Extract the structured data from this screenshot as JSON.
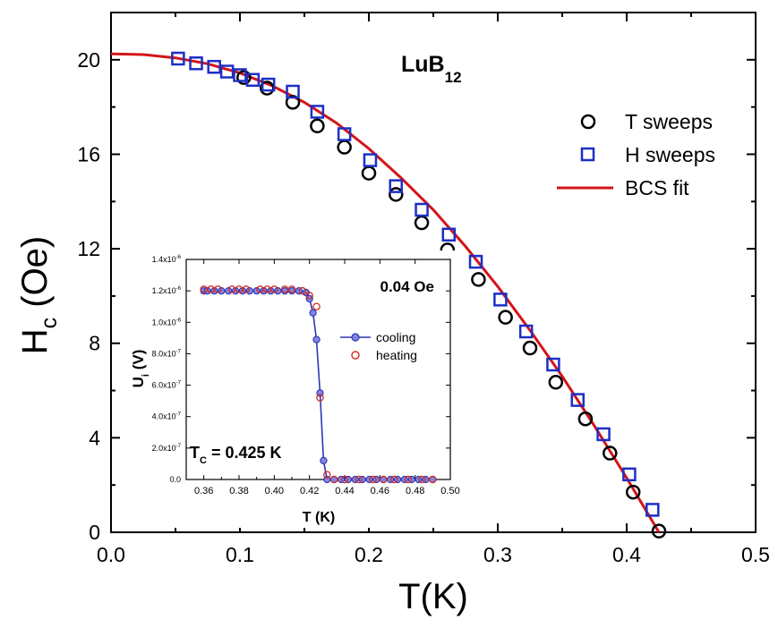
{
  "chart_data": [
    {
      "type": "scatter",
      "title": "LuB",
      "title_sub": "12",
      "xlabel": "T(K)",
      "ylabel_main": "H",
      "ylabel_sub": "c",
      "ylabel_rest": " (Oe)",
      "xlim": [
        0.0,
        0.5
      ],
      "ylim": [
        0,
        22
      ],
      "xticks": [
        "0.0",
        "0.1",
        "0.2",
        "0.3",
        "0.4",
        "0.5"
      ],
      "yticks": [
        "0",
        "4",
        "8",
        "12",
        "16",
        "20"
      ],
      "legend": {
        "placement": "right"
      },
      "series": [
        {
          "name": "T sweeps",
          "marker": "circle",
          "color": "#000000",
          "points": [
            [
              0.103,
              19.25
            ],
            [
              0.121,
              18.8
            ],
            [
              0.141,
              18.2
            ],
            [
              0.16,
              17.2
            ],
            [
              0.181,
              16.3
            ],
            [
              0.2,
              15.2
            ],
            [
              0.221,
              14.3
            ],
            [
              0.241,
              13.1
            ],
            [
              0.261,
              11.95
            ],
            [
              0.285,
              10.7
            ],
            [
              0.306,
              9.1
            ],
            [
              0.325,
              7.8
            ],
            [
              0.345,
              6.35
            ],
            [
              0.368,
              4.8
            ],
            [
              0.387,
              3.35
            ],
            [
              0.405,
              1.7
            ],
            [
              0.425,
              0.05
            ]
          ]
        },
        {
          "name": "H sweeps",
          "marker": "square",
          "color": "#1c2fc4",
          "points": [
            [
              0.052,
              20.05
            ],
            [
              0.066,
              19.85
            ],
            [
              0.08,
              19.7
            ],
            [
              0.09,
              19.5
            ],
            [
              0.1,
              19.35
            ],
            [
              0.11,
              19.15
            ],
            [
              0.122,
              18.95
            ],
            [
              0.141,
              18.65
            ],
            [
              0.16,
              17.8
            ],
            [
              0.181,
              16.85
            ],
            [
              0.201,
              15.75
            ],
            [
              0.221,
              14.65
            ],
            [
              0.241,
              13.65
            ],
            [
              0.262,
              12.6
            ],
            [
              0.283,
              11.45
            ],
            [
              0.302,
              9.85
            ],
            [
              0.322,
              8.5
            ],
            [
              0.343,
              7.1
            ],
            [
              0.362,
              5.6
            ],
            [
              0.382,
              4.15
            ],
            [
              0.402,
              2.45
            ],
            [
              0.42,
              0.95
            ]
          ]
        },
        {
          "name": "BCS fit",
          "type": "line",
          "color": "#d4141a",
          "points": [
            [
              0.0,
              20.25
            ],
            [
              0.025,
              20.22
            ],
            [
              0.05,
              20.08
            ],
            [
              0.075,
              19.83
            ],
            [
              0.1,
              19.44
            ],
            [
              0.125,
              18.9
            ],
            [
              0.15,
              18.2
            ],
            [
              0.175,
              17.32
            ],
            [
              0.2,
              16.24
            ],
            [
              0.225,
              15.0
            ],
            [
              0.25,
              13.65
            ],
            [
              0.275,
              12.1
            ],
            [
              0.3,
              10.4
            ],
            [
              0.325,
              8.55
            ],
            [
              0.35,
              6.6
            ],
            [
              0.375,
              4.5
            ],
            [
              0.4,
              2.3
            ],
            [
              0.425,
              0.0
            ]
          ]
        }
      ]
    },
    {
      "type": "line",
      "annotation_field": "0.04 Oe",
      "annotation_tc_main": "T",
      "annotation_tc_sub": "C",
      "annotation_tc_rest": " = 0.425 K",
      "xlabel": "T (K)",
      "ylabel_main": "U",
      "ylabel_sub": "i",
      "ylabel_rest": " (V)",
      "xlim": [
        0.35,
        0.5
      ],
      "ylim": [
        0,
        1.4e-06
      ],
      "xticks": [
        "0.36",
        "0.38",
        "0.40",
        "0.42",
        "0.44",
        "0.46",
        "0.48",
        "0.50"
      ],
      "yticks": [
        "0.0",
        "2.0x10",
        "4.0x10",
        "6.0x10",
        "8.0x10",
        "1.0x10",
        "1.2x10",
        "1.4x10"
      ],
      "ytick_exponents": [
        "",
        "-7",
        "-7",
        "-7",
        "-7",
        "-6",
        "-6",
        "-6"
      ],
      "legend": {
        "placement": "center-right"
      },
      "series": [
        {
          "name": "cooling",
          "color": "#2f35b3",
          "fill": "#7f86e3",
          "marker": "circle-filled",
          "x": [
            0.36,
            0.362,
            0.366,
            0.37,
            0.374,
            0.378,
            0.382,
            0.386,
            0.39,
            0.394,
            0.398,
            0.402,
            0.406,
            0.41,
            0.414,
            0.418,
            0.42,
            0.422,
            0.424,
            0.426,
            0.428,
            0.43,
            0.434,
            0.438,
            0.442,
            0.446,
            0.45,
            0.454,
            0.458,
            0.462,
            0.466,
            0.47,
            0.474,
            0.478,
            0.482,
            0.486,
            0.49
          ],
          "y": [
            1.2e-06,
            1.2e-06,
            1.2e-06,
            1.2e-06,
            1.2e-06,
            1.2e-06,
            1.2e-06,
            1.2e-06,
            1.2e-06,
            1.2e-06,
            1.2e-06,
            1.2e-06,
            1.2e-06,
            1.2e-06,
            1.2e-06,
            1.19e-06,
            1.15e-06,
            1.06e-06,
            8.9e-07,
            5.5e-07,
            1.2e-07,
            0,
            0,
            0,
            0,
            0,
            0,
            0,
            0,
            0,
            0,
            0,
            0,
            0,
            0,
            0,
            0
          ]
        },
        {
          "name": "heating",
          "color": "#d42a1f",
          "fill": "#ffffff",
          "marker": "circle-open",
          "x": [
            0.36,
            0.364,
            0.368,
            0.376,
            0.38,
            0.384,
            0.392,
            0.396,
            0.4,
            0.406,
            0.41,
            0.416,
            0.42,
            0.424,
            0.426,
            0.43,
            0.434,
            0.44,
            0.448,
            0.456,
            0.462,
            0.468,
            0.476,
            0.484,
            0.49
          ],
          "y": [
            1.21e-06,
            1.21e-06,
            1.21e-06,
            1.21e-06,
            1.21e-06,
            1.21e-06,
            1.21e-06,
            1.21e-06,
            1.21e-06,
            1.21e-06,
            1.21e-06,
            1.2e-06,
            1.17e-06,
            1.1e-06,
            5.2e-07,
            3e-08,
            0,
            0,
            0,
            0,
            0,
            0,
            0,
            0,
            0
          ]
        }
      ]
    }
  ]
}
